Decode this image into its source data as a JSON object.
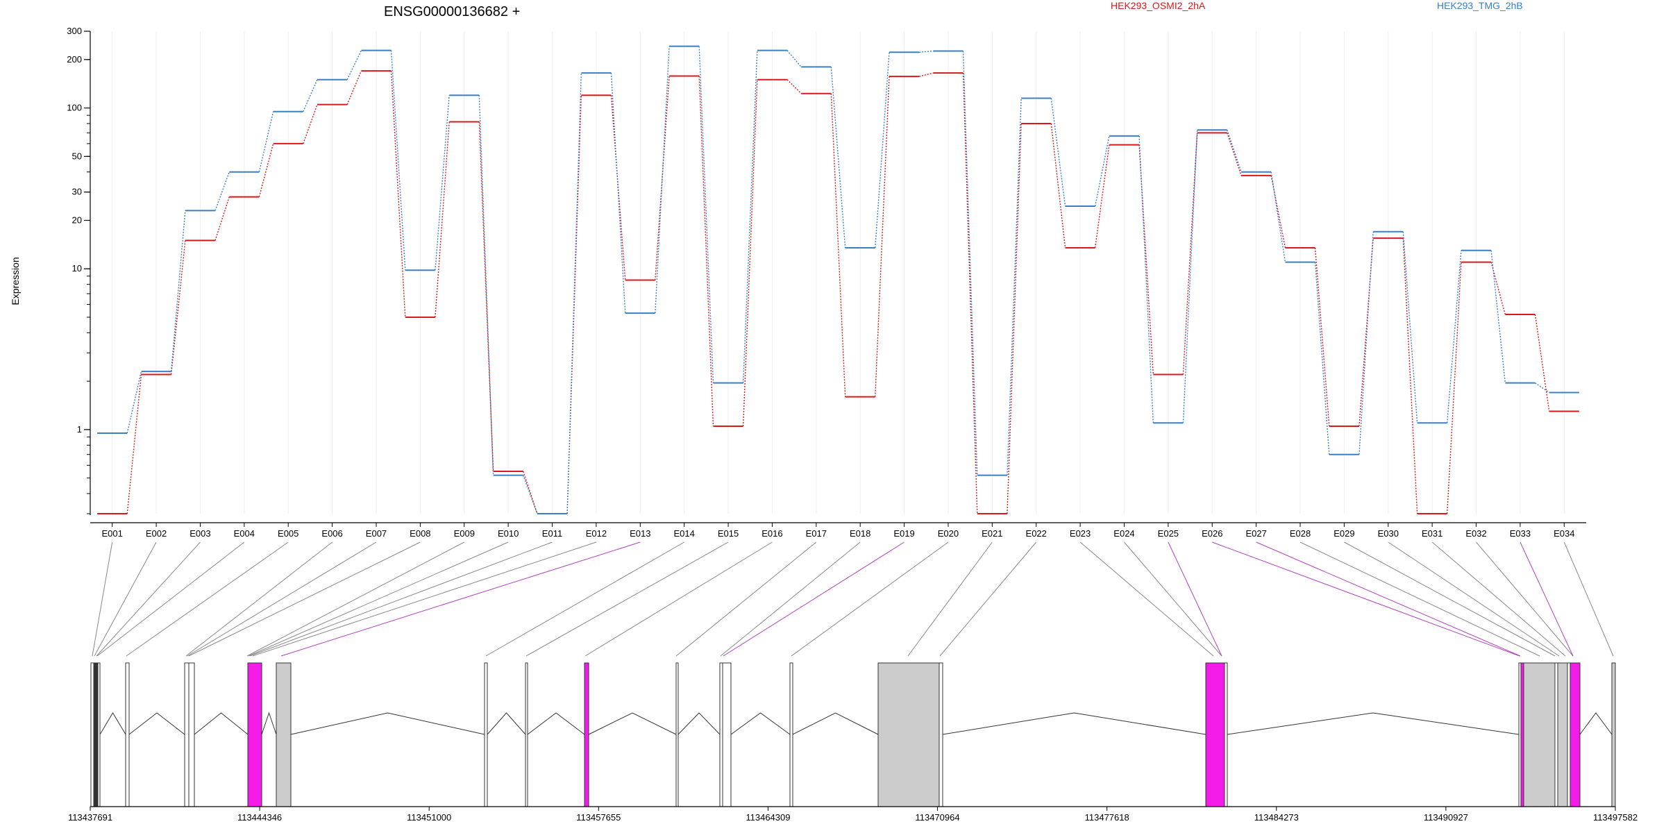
{
  "chart_data": {
    "type": "line",
    "title": "ENSG00000136682 +",
    "ylabel": "Expression",
    "xlabel": "",
    "yscale": "log",
    "ylim": [
      0.3,
      300
    ],
    "y_ticks": [
      1,
      10,
      20,
      30,
      50,
      100,
      200,
      300
    ],
    "legend_placement": "top-right",
    "categories": [
      "E001",
      "E002",
      "E003",
      "E004",
      "E005",
      "E006",
      "E007",
      "E008",
      "E009",
      "E010",
      "E011",
      "E012",
      "E013",
      "E014",
      "E015",
      "E016",
      "E017",
      "E018",
      "E019",
      "E020",
      "E021",
      "E022",
      "E023",
      "E024",
      "E025",
      "E026",
      "E027",
      "E028",
      "E029",
      "E030",
      "E031",
      "E032",
      "E033",
      "E034"
    ],
    "series": [
      {
        "name": "HEK293_OSMI2_2hA",
        "color": "#d7191c",
        "values": [
          0.3,
          2.2,
          15,
          28,
          60,
          105,
          170,
          5.0,
          82,
          0.55,
          0.3,
          120,
          8.5,
          158,
          1.05,
          150,
          123,
          1.6,
          157,
          165,
          0.3,
          80,
          13.5,
          59,
          2.2,
          70,
          38,
          13.5,
          1.05,
          15.5,
          0.3,
          11,
          5.2,
          1.3
        ]
      },
      {
        "name": "HEK293_TMG_2hB",
        "color": "#3a7fc4",
        "values": [
          0.95,
          2.3,
          23,
          40,
          95,
          150,
          228,
          9.8,
          120,
          0.52,
          0.3,
          165,
          5.3,
          242,
          1.95,
          228,
          180,
          13.5,
          222,
          226,
          0.52,
          115,
          24.5,
          67,
          1.1,
          73,
          40,
          11,
          0.7,
          17,
          1.1,
          13,
          1.95,
          1.7
        ]
      }
    ],
    "gene_model": {
      "coordinate_ticks": [
        "113437691",
        "113444346",
        "113451000",
        "113457655",
        "113464309",
        "113470964",
        "113477618",
        "113484273",
        "113490927",
        "113497582"
      ],
      "highlight_color": "#f21be8",
      "intron_color": "#333333"
    }
  }
}
